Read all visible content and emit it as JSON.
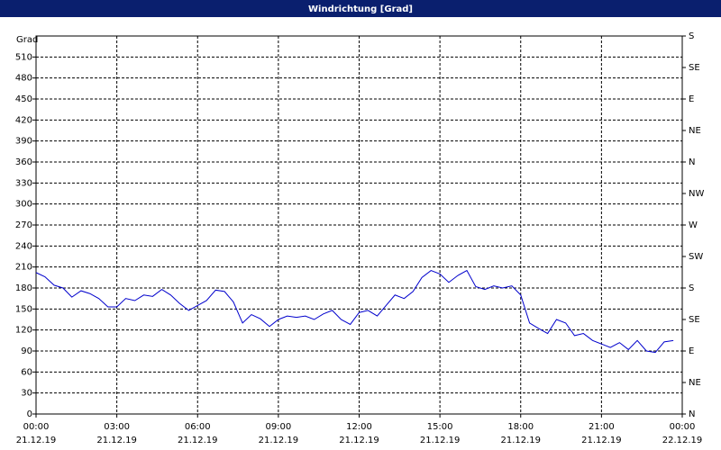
{
  "chart_data": {
    "type": "line",
    "title": "Windrichtung [Grad]",
    "ylabel": "Grad",
    "x": [
      0,
      0.33,
      0.67,
      1,
      1.33,
      1.67,
      2,
      2.33,
      2.67,
      3,
      3.33,
      3.67,
      4,
      4.33,
      4.67,
      5,
      5.33,
      5.67,
      6,
      6.33,
      6.67,
      7,
      7.33,
      7.67,
      8,
      8.33,
      8.67,
      9,
      9.33,
      9.67,
      10,
      10.33,
      10.67,
      11,
      11.33,
      11.67,
      12,
      12.33,
      12.67,
      13,
      13.33,
      13.67,
      14,
      14.33,
      14.67,
      15,
      15.33,
      15.67,
      16,
      16.33,
      16.67,
      17,
      17.33,
      17.67,
      18,
      18.33,
      18.67,
      19,
      19.33,
      19.67,
      20,
      20.33,
      20.67,
      21,
      21.33,
      21.67,
      22,
      22.33,
      22.67,
      23,
      23.33,
      23.67
    ],
    "series": [
      {
        "name": "Windrichtung",
        "color": "#0000cc",
        "values": [
          202,
          196,
          184,
          180,
          167,
          176,
          172,
          165,
          153,
          153,
          165,
          162,
          170,
          168,
          178,
          170,
          158,
          148,
          155,
          162,
          177,
          175,
          160,
          130,
          142,
          136,
          125,
          135,
          140,
          138,
          140,
          135,
          143,
          148,
          135,
          128,
          145,
          148,
          140,
          155,
          170,
          165,
          175,
          195,
          205,
          200,
          188,
          198,
          205,
          182,
          178,
          183,
          180,
          183,
          170,
          130,
          122,
          115,
          135,
          130,
          112,
          115,
          105,
          100,
          95,
          102,
          92,
          105,
          90,
          88,
          103,
          105
        ]
      }
    ],
    "xlim": [
      0,
      24
    ],
    "xticks": [
      {
        "value": 0,
        "label": "00:00",
        "date": "21.12.19"
      },
      {
        "value": 3,
        "label": "03:00",
        "date": "21.12.19"
      },
      {
        "value": 6,
        "label": "06:00",
        "date": "21.12.19"
      },
      {
        "value": 9,
        "label": "09:00",
        "date": "21.12.19"
      },
      {
        "value": 12,
        "label": "12:00",
        "date": "21.12.19"
      },
      {
        "value": 15,
        "label": "15:00",
        "date": "21.12.19"
      },
      {
        "value": 18,
        "label": "18:00",
        "date": "21.12.19"
      },
      {
        "value": 21,
        "label": "21:00",
        "date": "21.12.19"
      },
      {
        "value": 24,
        "label": "00:00",
        "date": "22.12.19"
      }
    ],
    "ylim": [
      0,
      540
    ],
    "yticks": [
      0,
      30,
      60,
      90,
      120,
      150,
      180,
      210,
      240,
      270,
      300,
      330,
      360,
      390,
      420,
      450,
      480,
      510
    ],
    "y2lim": [
      0,
      540
    ],
    "y2ticks": [
      {
        "value": 0,
        "label": "N"
      },
      {
        "value": 45,
        "label": "NE"
      },
      {
        "value": 90,
        "label": "E"
      },
      {
        "value": 135,
        "label": "SE"
      },
      {
        "value": 180,
        "label": "S"
      },
      {
        "value": 225,
        "label": "SW"
      },
      {
        "value": 270,
        "label": "W"
      },
      {
        "value": 315,
        "label": "NW"
      },
      {
        "value": 360,
        "label": "N"
      },
      {
        "value": 405,
        "label": "NE"
      },
      {
        "value": 450,
        "label": "E"
      },
      {
        "value": 495,
        "label": "SE"
      },
      {
        "value": 540,
        "label": "S"
      }
    ],
    "grid": true
  }
}
